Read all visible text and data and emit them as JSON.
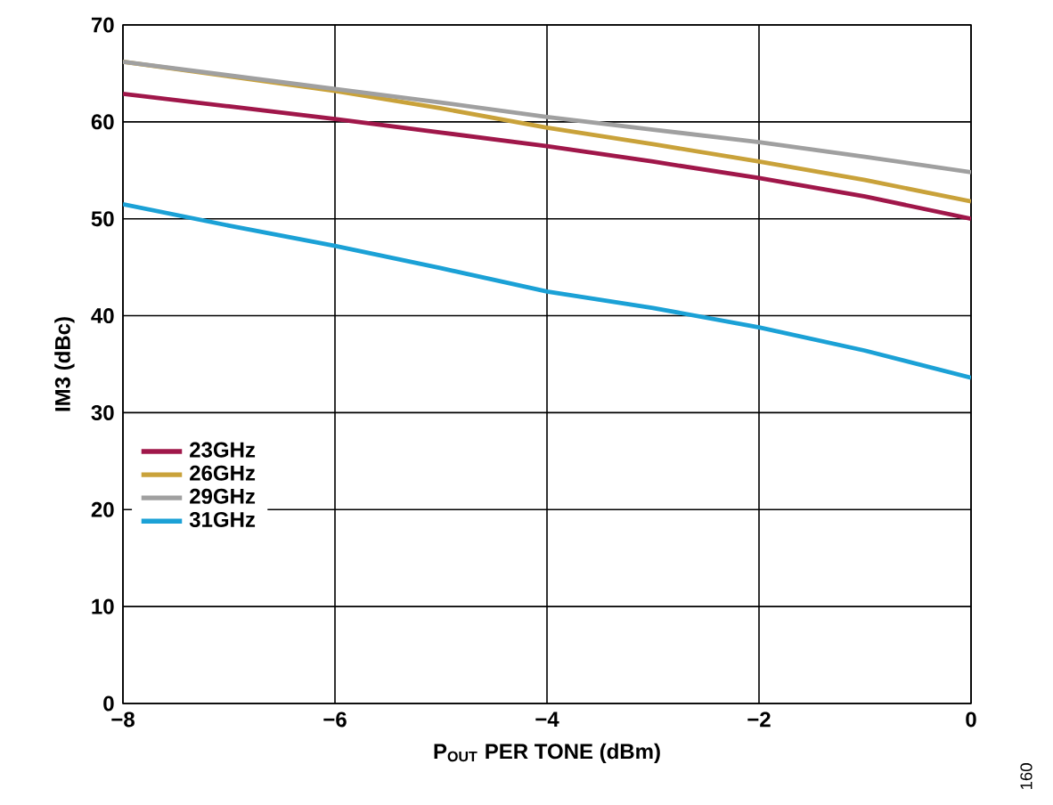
{
  "chart_data": {
    "type": "line",
    "xlabel": "P$_{OUT}$ PER TONE (dBm)",
    "ylabel": "IM3 (dBc)",
    "x": [
      -8,
      -7,
      -6,
      -5,
      -4,
      -3,
      -2,
      -1,
      0
    ],
    "series": [
      {
        "name": "23GHz",
        "color": "#a0174a",
        "values": [
          62.9,
          61.6,
          60.3,
          58.9,
          57.5,
          55.9,
          54.2,
          52.3,
          50.0
        ]
      },
      {
        "name": "26GHz",
        "color": "#c9a23a",
        "values": [
          66.2,
          64.7,
          63.2,
          61.4,
          59.4,
          57.7,
          55.9,
          54.0,
          51.8
        ]
      },
      {
        "name": "29GHz",
        "color": "#a0a0a0",
        "values": [
          66.2,
          64.8,
          63.4,
          62.0,
          60.5,
          59.2,
          57.9,
          56.4,
          54.8
        ]
      },
      {
        "name": "31GHz",
        "color": "#1ba1d6",
        "values": [
          51.5,
          49.3,
          47.2,
          44.9,
          42.5,
          40.8,
          38.8,
          36.4,
          33.6
        ]
      }
    ],
    "xlim": [
      -8,
      0
    ],
    "ylim": [
      0,
      70
    ],
    "xticks": [
      {
        "value": -8,
        "label": "−8"
      },
      {
        "value": -6,
        "label": "−6"
      },
      {
        "value": -4,
        "label": "−4"
      },
      {
        "value": -2,
        "label": "−2"
      },
      0
    ],
    "yticks": [
      0,
      10,
      20,
      30,
      40,
      50,
      60,
      70
    ],
    "grid": true,
    "legend": "left",
    "marker": "none",
    "line_style": "solid",
    "annotations": [
      "160"
    ]
  }
}
